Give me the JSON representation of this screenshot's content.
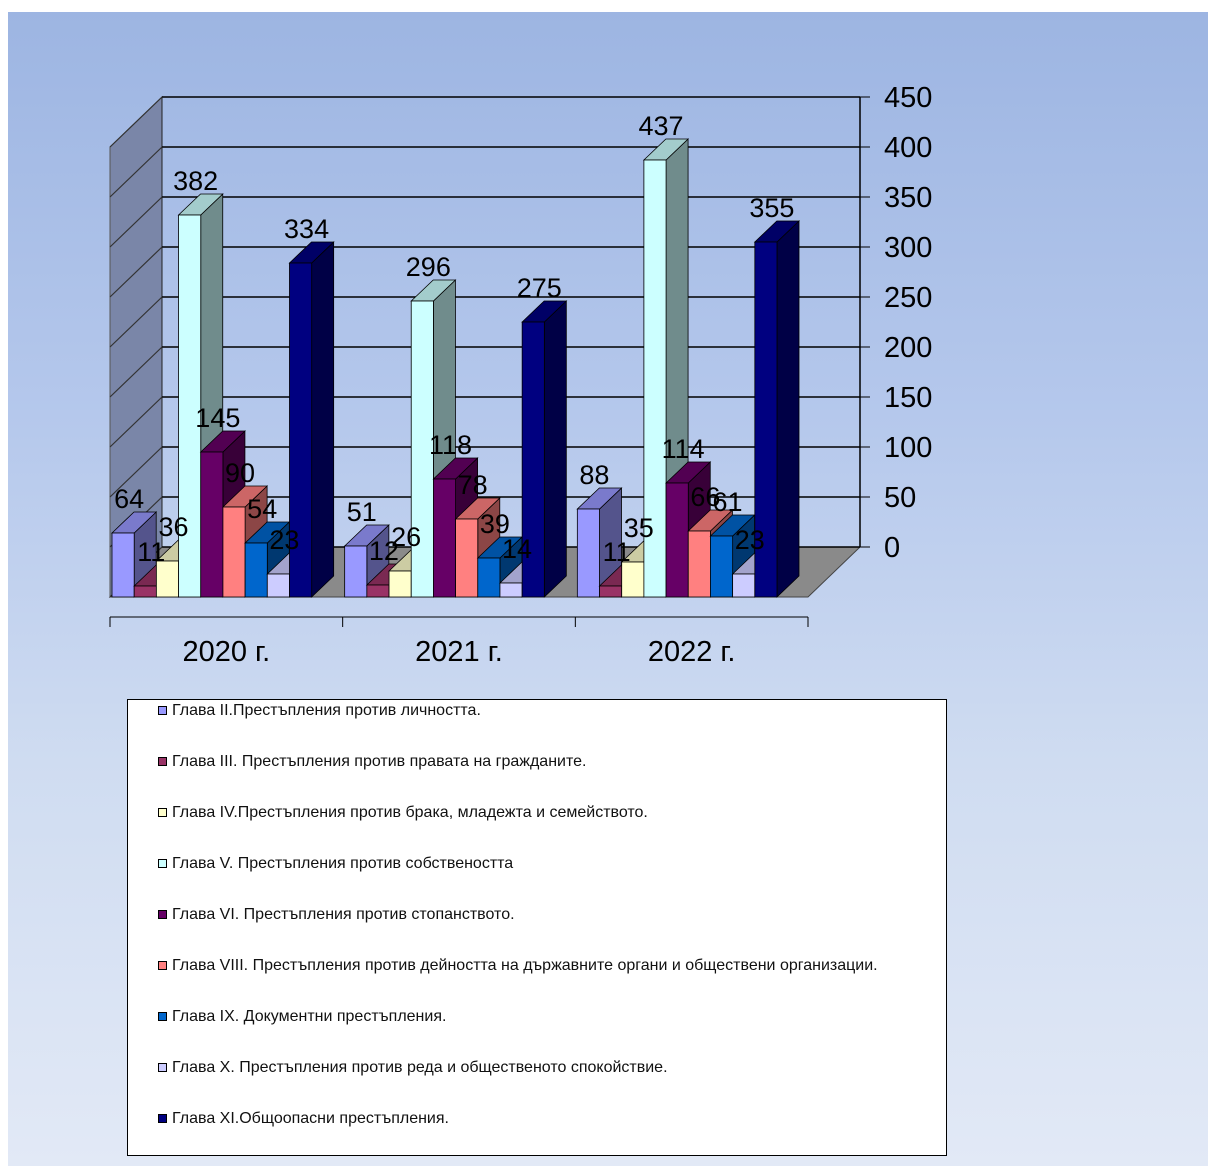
{
  "chart_data": {
    "type": "bar",
    "categories": [
      "2020 г.",
      "2021 г.",
      "2022 г."
    ],
    "ylim": [
      0,
      450
    ],
    "yticks": [
      0,
      50,
      100,
      150,
      200,
      250,
      300,
      350,
      400,
      450
    ],
    "grid": true,
    "legend_position": "bottom",
    "series": [
      {
        "name": "Глава II.Престъпления против личността.",
        "color": "#9999ff",
        "values": [
          64,
          51,
          88
        ]
      },
      {
        "name": "Глава III. Престъпления против правата на гражданите.",
        "color": "#993366",
        "values": [
          11,
          12,
          11
        ]
      },
      {
        "name": "Глава IV.Престъпления против брака, младежта и семейството.",
        "color": "#ffffcc",
        "values": [
          36,
          26,
          35
        ]
      },
      {
        "name": "Глава V. Престъпления против собствеността",
        "color": "#ccffff",
        "values": [
          382,
          296,
          437
        ]
      },
      {
        "name": "Глава VI. Престъпления против стопанството.",
        "color": "#660066",
        "values": [
          145,
          118,
          114
        ]
      },
      {
        "name": "Глава VIII. Престъпления против дейността на държавните органи и обществени организации.",
        "color": "#ff8080",
        "values": [
          90,
          78,
          66
        ]
      },
      {
        "name": "Глава IX. Документни престъпления.",
        "color": "#0066cc",
        "values": [
          54,
          39,
          61
        ]
      },
      {
        "name": "Глава X. Престъпления против реда и общественото спокойствие.",
        "color": "#ccccff",
        "values": [
          23,
          14,
          23
        ]
      },
      {
        "name": "Глава XI.Общоопасни престъпления.",
        "color": "#000080",
        "values": [
          334,
          275,
          355
        ]
      }
    ]
  }
}
